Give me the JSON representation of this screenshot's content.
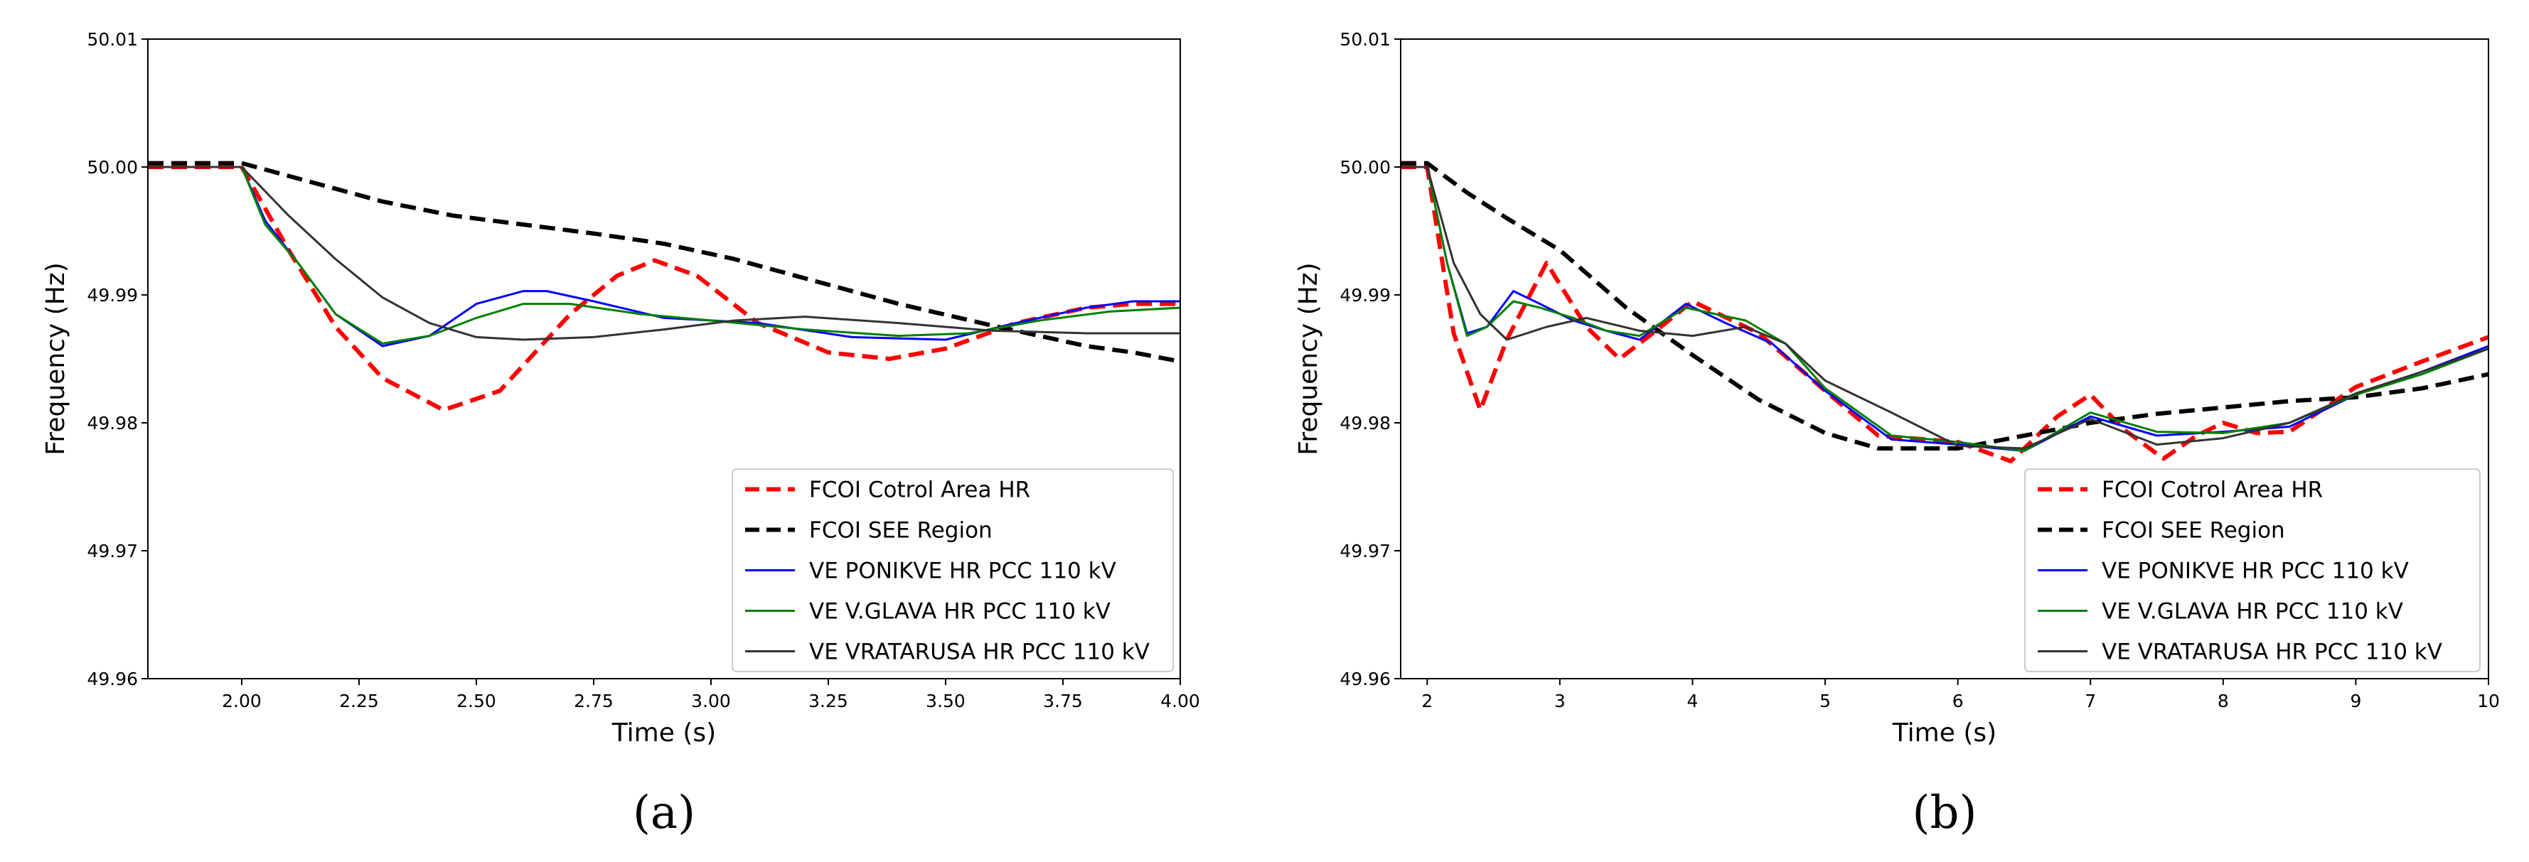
{
  "chart_data": [
    {
      "type": "line",
      "caption": "(a)",
      "xlabel": "Time (s)",
      "ylabel": "Frequency (Hz)",
      "xlim": [
        1.8,
        4.0
      ],
      "ylim": [
        49.96,
        50.01
      ],
      "xticks": [
        "2.00",
        "2.25",
        "2.50",
        "2.75",
        "3.00",
        "3.25",
        "3.50",
        "3.75",
        "4.00"
      ],
      "yticks": [
        "49.96",
        "49.97",
        "49.98",
        "49.99",
        "50.00",
        "50.01"
      ],
      "legend_position": "lower-right",
      "series": [
        {
          "name": "FCOI Cotrol Area HR",
          "color": "#ff0000",
          "style": "dashed",
          "x": [
            1.8,
            2.0,
            2.1,
            2.2,
            2.3,
            2.43,
            2.55,
            2.7,
            2.8,
            2.88,
            2.97,
            3.1,
            3.25,
            3.38,
            3.5,
            3.65,
            3.8,
            3.9,
            4.0
          ],
          "y": [
            50.0,
            50.0,
            49.9935,
            49.9875,
            49.9835,
            49.981,
            49.9825,
            49.9885,
            49.9915,
            49.9927,
            49.9915,
            49.9878,
            49.9855,
            49.985,
            49.9858,
            49.9878,
            49.989,
            49.9893,
            49.9893
          ]
        },
        {
          "name": "FCOI SEE Region",
          "color": "#000000",
          "style": "dashed",
          "x": [
            1.8,
            2.0,
            2.15,
            2.3,
            2.45,
            2.6,
            2.75,
            2.9,
            3.05,
            3.2,
            3.4,
            3.6,
            3.8,
            3.9,
            4.0
          ],
          "y": [
            50.0003,
            50.0003,
            49.9988,
            49.9973,
            49.9962,
            49.9955,
            49.9948,
            49.994,
            49.9928,
            49.9913,
            49.9893,
            49.9876,
            49.986,
            49.9855,
            49.9848
          ]
        },
        {
          "name": "VE PONIKVE HR PCC 110 kV",
          "color": "#0000ff",
          "style": "solid",
          "x": [
            1.8,
            2.0,
            2.05,
            2.12,
            2.2,
            2.3,
            2.4,
            2.5,
            2.6,
            2.65,
            2.75,
            2.9,
            3.1,
            3.3,
            3.5,
            3.65,
            3.8,
            3.9,
            4.0
          ],
          "y": [
            50.0,
            50.0,
            49.9958,
            49.9925,
            49.9885,
            49.986,
            49.9868,
            49.9893,
            49.9903,
            49.9903,
            49.9895,
            49.9882,
            49.9878,
            49.9867,
            49.9865,
            49.9878,
            49.989,
            49.9895,
            49.9895
          ]
        },
        {
          "name": "VE V.GLAVA HR PCC 110 kV",
          "color": "#008000",
          "style": "solid",
          "x": [
            1.8,
            2.0,
            2.05,
            2.12,
            2.2,
            2.3,
            2.4,
            2.5,
            2.6,
            2.7,
            2.85,
            3.0,
            3.2,
            3.4,
            3.55,
            3.7,
            3.85,
            4.0
          ],
          "y": [
            50.0,
            50.0,
            49.9955,
            49.9925,
            49.9885,
            49.9862,
            49.9868,
            49.9882,
            49.9893,
            49.9893,
            49.9885,
            49.988,
            49.9873,
            49.9868,
            49.987,
            49.988,
            49.9887,
            49.989
          ]
        },
        {
          "name": "VE VRATARUSA HR PCC 110 kV",
          "color": "#333333",
          "style": "solid",
          "x": [
            1.8,
            2.0,
            2.1,
            2.2,
            2.3,
            2.4,
            2.5,
            2.6,
            2.75,
            2.9,
            3.05,
            3.2,
            3.4,
            3.6,
            3.8,
            4.0
          ],
          "y": [
            50.0,
            50.0,
            49.9962,
            49.9928,
            49.9898,
            49.9878,
            49.9867,
            49.9865,
            49.9867,
            49.9873,
            49.988,
            49.9883,
            49.9878,
            49.9872,
            49.987,
            49.987
          ]
        }
      ]
    },
    {
      "type": "line",
      "caption": "(b)",
      "xlabel": "Time (s)",
      "ylabel": "Frequency (Hz)",
      "xlim": [
        1.8,
        10.0
      ],
      "ylim": [
        49.96,
        50.01
      ],
      "xticks": [
        "2",
        "3",
        "4",
        "5",
        "6",
        "7",
        "8",
        "9",
        "10"
      ],
      "yticks": [
        "49.96",
        "49.97",
        "49.98",
        "49.99",
        "50.00",
        "50.01"
      ],
      "legend_position": "lower-right",
      "series": [
        {
          "name": "FCOI Cotrol Area HR",
          "color": "#ff0000",
          "style": "dashed",
          "x": [
            1.8,
            2.0,
            2.2,
            2.4,
            2.6,
            2.9,
            3.2,
            3.45,
            3.7,
            4.0,
            4.5,
            5.0,
            5.4,
            6.0,
            6.4,
            6.75,
            7.0,
            7.25,
            7.55,
            7.8,
            8.0,
            8.25,
            8.5,
            9.0,
            9.5,
            10.0
          ],
          "y": [
            50.0,
            50.0,
            49.987,
            49.981,
            49.9865,
            49.9925,
            49.9875,
            49.985,
            49.987,
            49.9895,
            49.987,
            49.9825,
            49.979,
            49.9785,
            49.977,
            49.9805,
            49.9822,
            49.9795,
            49.9772,
            49.979,
            49.98,
            49.9792,
            49.9793,
            49.9828,
            49.9848,
            49.9867
          ]
        },
        {
          "name": "FCOI SEE Region",
          "color": "#000000",
          "style": "dashed",
          "x": [
            1.8,
            2.0,
            2.3,
            2.6,
            3.0,
            3.5,
            4.0,
            4.5,
            5.0,
            5.4,
            6.0,
            6.5,
            7.0,
            7.5,
            8.0,
            8.5,
            9.0,
            9.5,
            10.0
          ],
          "y": [
            50.0003,
            50.0003,
            49.998,
            49.996,
            49.9935,
            49.989,
            49.9853,
            49.9818,
            49.9792,
            49.978,
            49.978,
            49.979,
            49.98,
            49.9807,
            49.9812,
            49.9817,
            49.982,
            49.9827,
            49.9838
          ]
        },
        {
          "name": "VE PONIKVE HR PCC 110 kV",
          "color": "#0000ff",
          "style": "solid",
          "x": [
            1.8,
            2.0,
            2.15,
            2.3,
            2.45,
            2.65,
            2.85,
            3.1,
            3.35,
            3.6,
            3.95,
            4.25,
            4.6,
            5.0,
            5.5,
            6.0,
            6.5,
            7.0,
            7.5,
            8.0,
            8.5,
            9.0,
            9.5,
            10.0
          ],
          "y": [
            50.0,
            50.0,
            49.9925,
            49.987,
            49.9875,
            49.9903,
            49.9893,
            49.988,
            49.9872,
            49.9865,
            49.9893,
            49.9878,
            49.9862,
            49.9825,
            49.9787,
            49.9783,
            49.9778,
            49.9805,
            49.979,
            49.9793,
            49.9797,
            49.9822,
            49.984,
            49.986
          ]
        },
        {
          "name": "VE V.GLAVA HR PCC 110 kV",
          "color": "#008000",
          "style": "solid",
          "x": [
            1.8,
            2.0,
            2.15,
            2.3,
            2.45,
            2.65,
            2.85,
            3.1,
            3.35,
            3.6,
            3.95,
            4.4,
            4.7,
            5.0,
            5.5,
            6.0,
            6.5,
            7.0,
            7.5,
            8.0,
            8.5,
            9.0,
            9.5,
            10.0
          ],
          "y": [
            50.0,
            50.0,
            49.9925,
            49.9868,
            49.9875,
            49.9895,
            49.989,
            49.9882,
            49.9872,
            49.9868,
            49.989,
            49.988,
            49.9862,
            49.9827,
            49.979,
            49.9785,
            49.9778,
            49.9808,
            49.9793,
            49.9792,
            49.98,
            49.9822,
            49.9838,
            49.9858
          ]
        },
        {
          "name": "VE VRATARUSA HR PCC 110 kV",
          "color": "#333333",
          "style": "solid",
          "x": [
            1.8,
            2.0,
            2.2,
            2.4,
            2.6,
            2.9,
            3.2,
            3.6,
            4.0,
            4.4,
            4.7,
            5.0,
            5.5,
            6.0,
            6.5,
            7.0,
            7.5,
            8.0,
            8.5,
            9.0,
            9.5,
            10.0
          ],
          "y": [
            50.0,
            50.0,
            49.9925,
            49.9885,
            49.9865,
            49.9875,
            49.9882,
            49.9872,
            49.9868,
            49.9875,
            49.9862,
            49.9833,
            49.9808,
            49.9782,
            49.978,
            49.9803,
            49.9783,
            49.9788,
            49.98,
            49.9823,
            49.984,
            49.9858
          ]
        }
      ]
    }
  ]
}
